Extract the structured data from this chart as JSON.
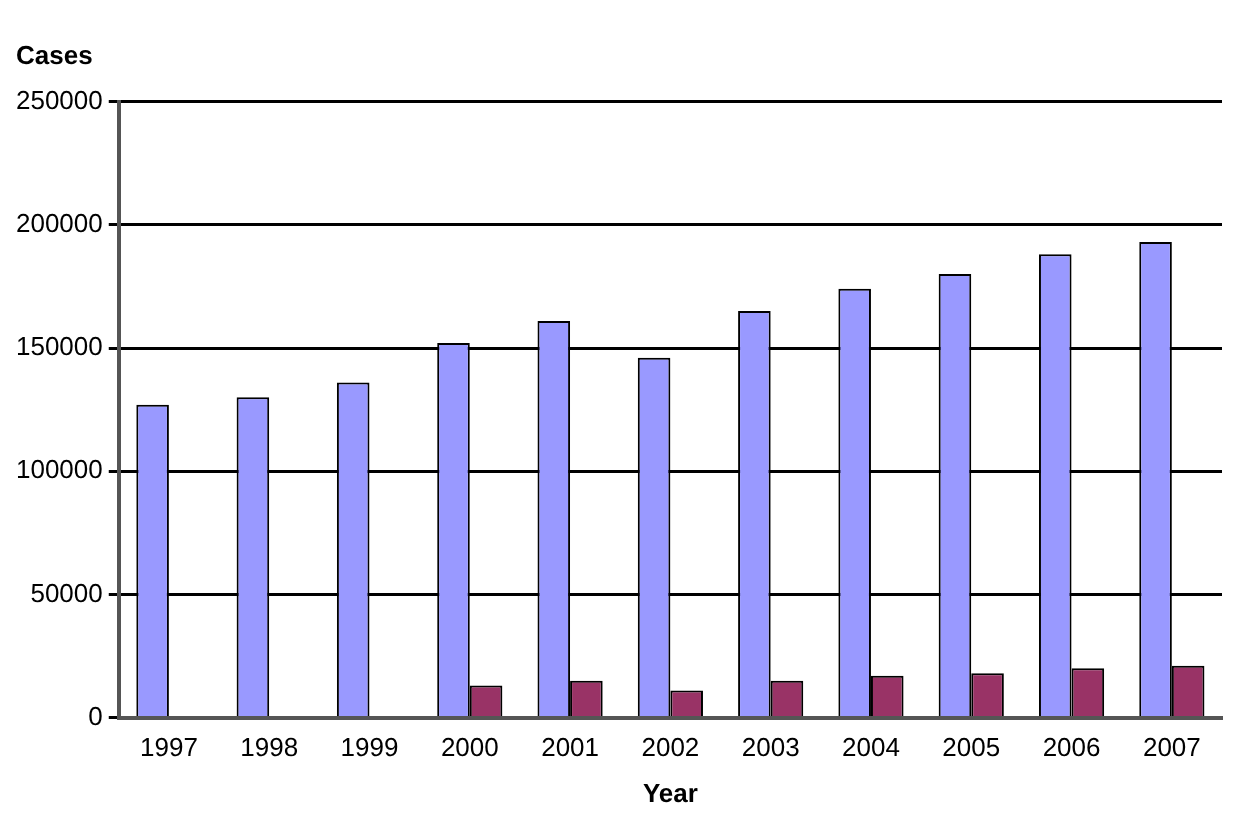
{
  "chart_data": {
    "type": "bar",
    "ylabel": "Cases",
    "xlabel": "Year",
    "categories": [
      "1997",
      "1998",
      "1999",
      "2000",
      "2001",
      "2002",
      "2003",
      "2004",
      "2005",
      "2006",
      "2007"
    ],
    "series": [
      {
        "color": "#9999ff",
        "values": [
          127000,
          130000,
          136000,
          152000,
          161000,
          146000,
          165000,
          174000,
          180000,
          188000,
          193000
        ]
      },
      {
        "color": "#993366",
        "values": [
          null,
          null,
          null,
          13000,
          15000,
          11000,
          15000,
          17000,
          18000,
          20000,
          21000
        ]
      }
    ],
    "ylim": [
      0,
      250000
    ],
    "yticks": [
      0,
      50000,
      100000,
      150000,
      200000,
      250000
    ],
    "grid": "y",
    "legend": false
  }
}
